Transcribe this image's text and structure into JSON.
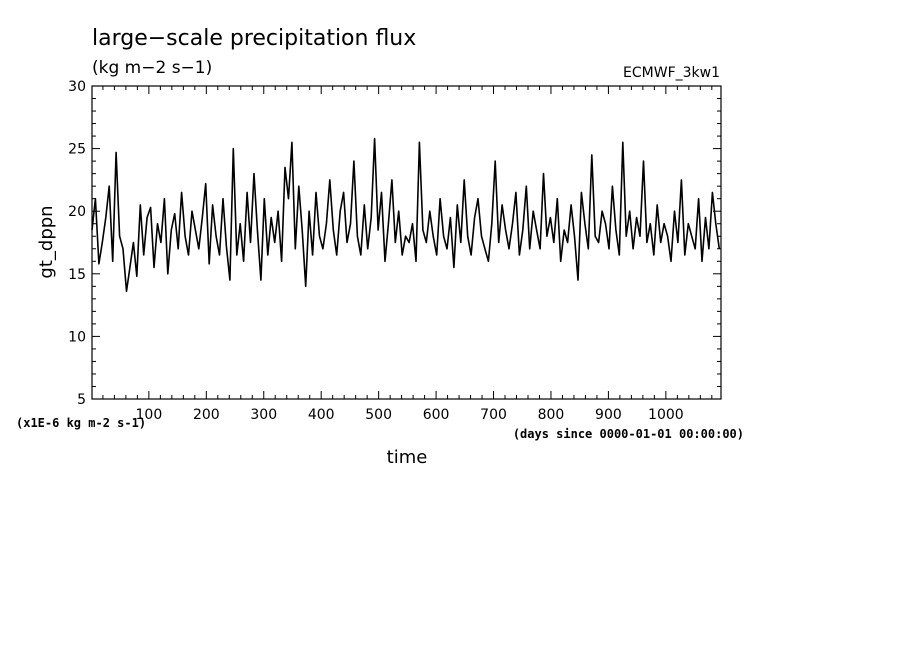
{
  "chart_data": {
    "type": "line",
    "title": "large−scale precipitation flux",
    "units": "(kg m−2 s−1)",
    "dataset": "ECMWF_3kw1",
    "ylabel": "gt_dppn",
    "xlabel": "time",
    "x_units": "(days since 0000-01-01 00:00:00)",
    "y_scale_note": "(x1E-6 kg m-2 s-1)",
    "xlim": [
      1,
      1096
    ],
    "ylim": [
      5,
      30
    ],
    "x_ticks": [
      100,
      200,
      300,
      400,
      500,
      600,
      700,
      800,
      900,
      1000
    ],
    "y_ticks": [
      5,
      10,
      15,
      20,
      25,
      30
    ],
    "grid": false,
    "legend": "none",
    "line_color": "#000000",
    "series": [
      {
        "x": [
          1,
          7,
          13,
          19,
          25,
          31,
          37,
          43,
          49,
          55,
          61,
          67,
          73,
          79,
          85,
          91,
          97,
          103,
          109,
          115,
          121,
          127,
          133,
          139,
          145,
          151,
          157,
          163,
          169,
          175,
          181,
          187,
          193,
          199,
          205,
          211,
          217,
          223,
          229,
          235,
          241,
          247,
          253,
          259,
          265,
          271,
          277,
          283,
          289,
          295,
          301,
          307,
          313,
          319,
          325,
          331,
          337,
          343,
          349,
          355,
          361,
          367,
          373,
          379,
          385,
          391,
          397,
          403,
          409,
          415,
          421,
          427,
          433,
          439,
          445,
          451,
          457,
          463,
          469,
          475,
          481,
          487,
          493,
          499,
          505,
          511,
          517,
          523,
          529,
          535,
          541,
          547,
          553,
          559,
          565,
          571,
          577,
          583,
          589,
          595,
          601,
          607,
          613,
          619,
          625,
          631,
          637,
          643,
          649,
          655,
          661,
          667,
          673,
          679,
          685,
          691,
          697,
          703,
          709,
          715,
          721,
          727,
          733,
          739,
          745,
          751,
          757,
          763,
          769,
          775,
          781,
          787,
          793,
          799,
          805,
          811,
          817,
          823,
          829,
          835,
          841,
          847,
          853,
          859,
          865,
          871,
          877,
          883,
          889,
          895,
          901,
          907,
          913,
          919,
          925,
          931,
          937,
          943,
          949,
          955,
          961,
          967,
          973,
          979,
          985,
          991,
          997,
          1003,
          1009,
          1015,
          1021,
          1027,
          1033,
          1039,
          1045,
          1051,
          1057,
          1063,
          1069,
          1075,
          1081,
          1087,
          1093
        ],
        "y": [
          18.5,
          21.0,
          15.8,
          17.5,
          19.5,
          22.0,
          16.0,
          24.7,
          18.0,
          17.0,
          13.6,
          15.5,
          17.5,
          14.8,
          20.5,
          16.5,
          19.5,
          20.3,
          15.5,
          19.0,
          17.5,
          21.0,
          15.0,
          18.5,
          19.8,
          17.0,
          21.5,
          18.0,
          16.5,
          20.0,
          18.5,
          17.0,
          19.5,
          22.2,
          15.8,
          20.5,
          18.0,
          16.5,
          21.0,
          17.2,
          14.5,
          25.0,
          16.5,
          19.0,
          16.0,
          21.5,
          17.5,
          23.0,
          18.5,
          14.5,
          21.0,
          16.5,
          19.5,
          17.5,
          20.0,
          16.0,
          23.5,
          21.0,
          25.5,
          17.0,
          22.0,
          18.5,
          14.0,
          20.0,
          16.5,
          21.5,
          18.0,
          17.0,
          19.0,
          22.5,
          18.5,
          16.5,
          20.0,
          21.5,
          17.5,
          19.0,
          24.0,
          18.0,
          16.5,
          20.5,
          17.0,
          19.5,
          25.8,
          18.5,
          21.5,
          16.0,
          19.0,
          22.5,
          17.5,
          20.0,
          16.5,
          18.0,
          17.5,
          19.0,
          16.0,
          25.5,
          18.5,
          17.5,
          20.0,
          18.0,
          16.5,
          21.0,
          18.0,
          17.0,
          19.5,
          15.5,
          20.5,
          17.5,
          22.5,
          18.0,
          16.5,
          19.5,
          21.0,
          18.0,
          17.0,
          16.0,
          19.0,
          24.0,
          17.5,
          20.5,
          18.5,
          17.0,
          19.0,
          21.5,
          16.5,
          18.5,
          22.0,
          17.0,
          20.0,
          18.5,
          17.0,
          23.0,
          18.0,
          19.5,
          17.5,
          21.0,
          16.0,
          18.5,
          17.5,
          20.5,
          18.0,
          14.5,
          21.5,
          19.0,
          17.0,
          24.5,
          18.0,
          17.5,
          20.0,
          19.0,
          17.0,
          22.0,
          18.5,
          16.5,
          25.5,
          18.0,
          20.0,
          17.0,
          19.5,
          18.0,
          24.0,
          17.5,
          19.0,
          16.5,
          20.5,
          17.5,
          19.0,
          18.0,
          16.0,
          20.0,
          17.5,
          22.5,
          16.5,
          19.0,
          18.0,
          17.0,
          21.0,
          16.0,
          19.5,
          17.0,
          21.5,
          19.0,
          17.0
        ]
      }
    ]
  }
}
